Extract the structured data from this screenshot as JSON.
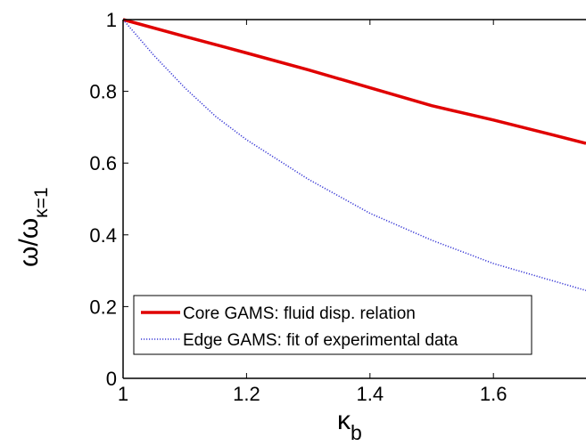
{
  "chart_data": {
    "type": "line",
    "title": "",
    "xlabel": {
      "main": "κ",
      "sub": "b"
    },
    "ylabel": {
      "main": "ω/ω",
      "sub": "κ=1"
    },
    "xlim": [
      1,
      1.75
    ],
    "ylim": [
      0,
      1
    ],
    "xticks": [
      1,
      1.2,
      1.4,
      1.6
    ],
    "xtick_labels": [
      "1",
      "1.2",
      "1.4",
      "1.6"
    ],
    "yticks": [
      0,
      0.2,
      0.4,
      0.6,
      0.8,
      1
    ],
    "ytick_labels": [
      "0",
      "0.2",
      "0.4",
      "0.6",
      "0.8",
      "1"
    ],
    "grid": false,
    "legend_position": "bottom-left",
    "series": [
      {
        "name": "Core GAMS: fluid disp. relation",
        "color": "#e00000",
        "style": "solid",
        "x": [
          1.0,
          1.1,
          1.2,
          1.3,
          1.4,
          1.5,
          1.6,
          1.7,
          1.75
        ],
        "y": [
          1.0,
          0.953,
          0.907,
          0.86,
          0.81,
          0.76,
          0.72,
          0.677,
          0.655
        ]
      },
      {
        "name": "Edge GAMS: fit of experimental data",
        "color": "#3b3bd6",
        "style": "dotted",
        "x": [
          1.0,
          1.05,
          1.1,
          1.15,
          1.2,
          1.3,
          1.4,
          1.5,
          1.6,
          1.7,
          1.75
        ],
        "y": [
          1.0,
          0.9,
          0.81,
          0.73,
          0.665,
          0.555,
          0.46,
          0.385,
          0.32,
          0.27,
          0.245
        ]
      }
    ]
  }
}
